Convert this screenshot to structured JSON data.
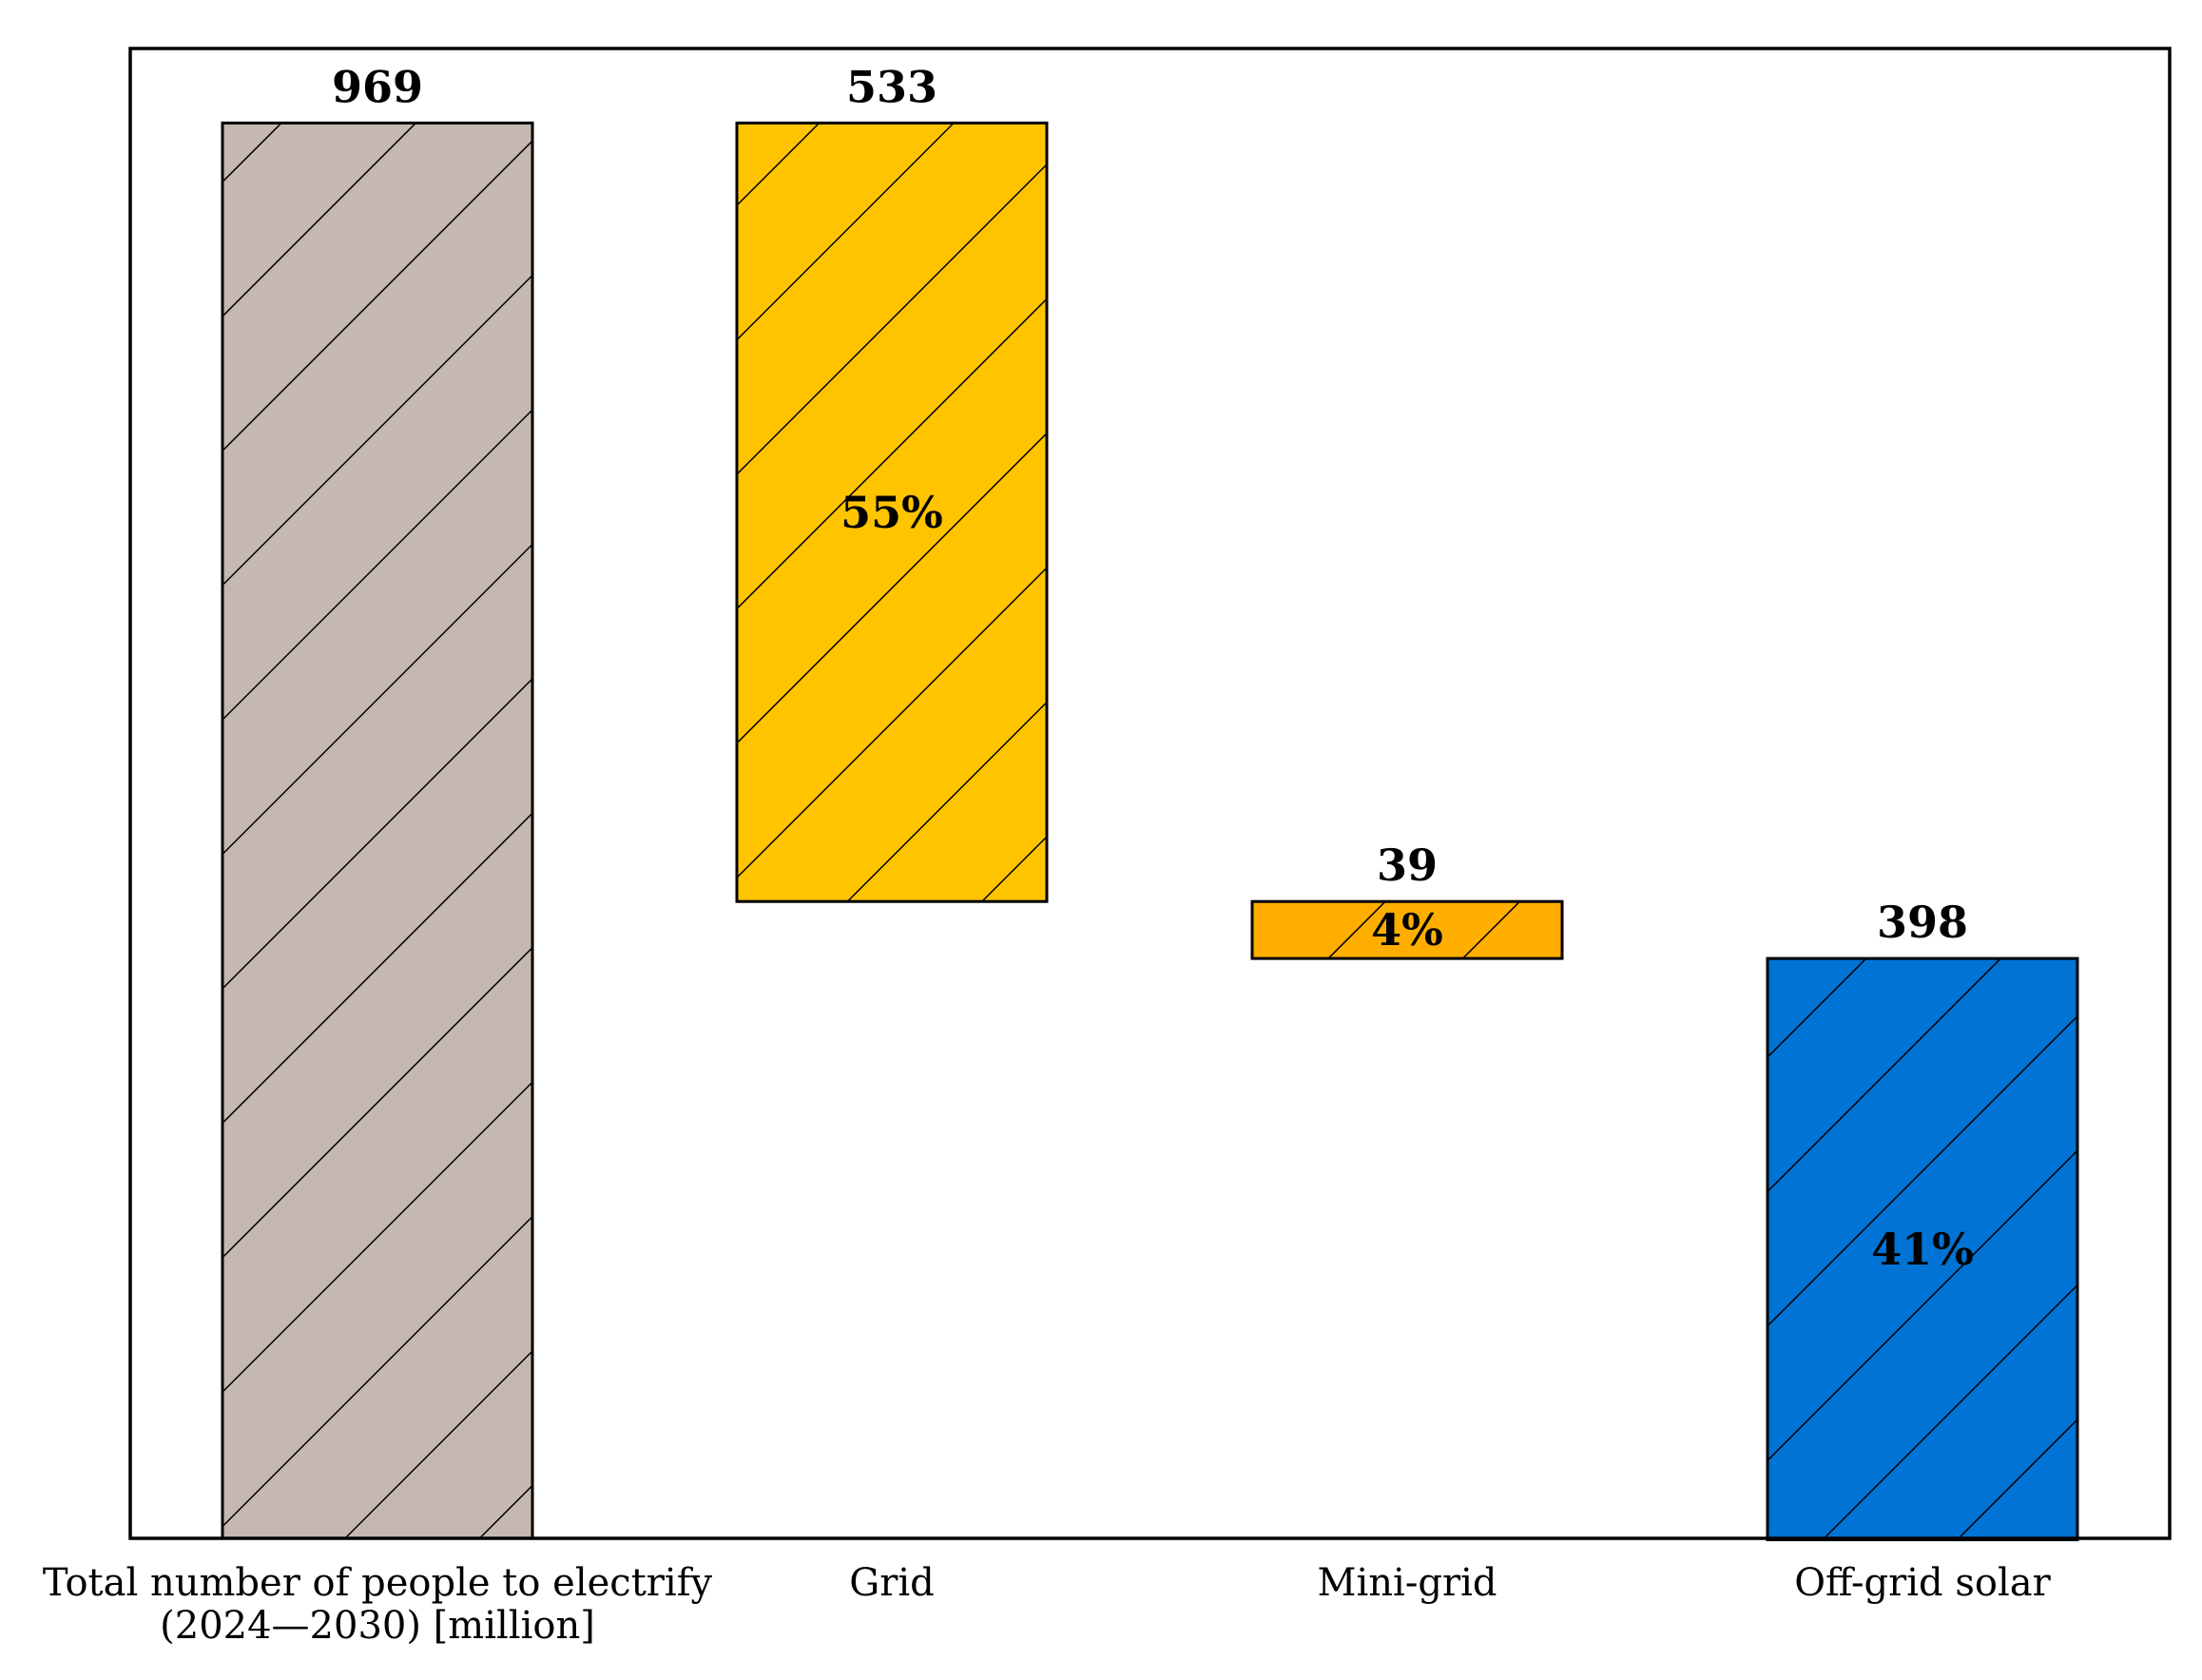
{
  "chart_data": {
    "type": "bar",
    "subtype": "waterfall",
    "categories": [
      [
        "Total number of people to electrify",
        "(2024—2030) [million]"
      ],
      [
        "Grid"
      ],
      [
        "Mini-grid"
      ],
      [
        "Off-grid solar"
      ]
    ],
    "values": [
      969,
      533,
      39,
      398
    ],
    "value_labels": [
      "969",
      "533",
      "39",
      "398"
    ],
    "percent_labels": [
      "",
      "55%",
      "4%",
      "41%"
    ],
    "colors": [
      "#c4b8b0",
      "#fec400",
      "#ffae00",
      "#0073d4"
    ],
    "hatch": "diagonal",
    "ylim": [
      0,
      1020
    ],
    "title": "",
    "xlabel": "",
    "ylabel": "",
    "grid": false
  }
}
